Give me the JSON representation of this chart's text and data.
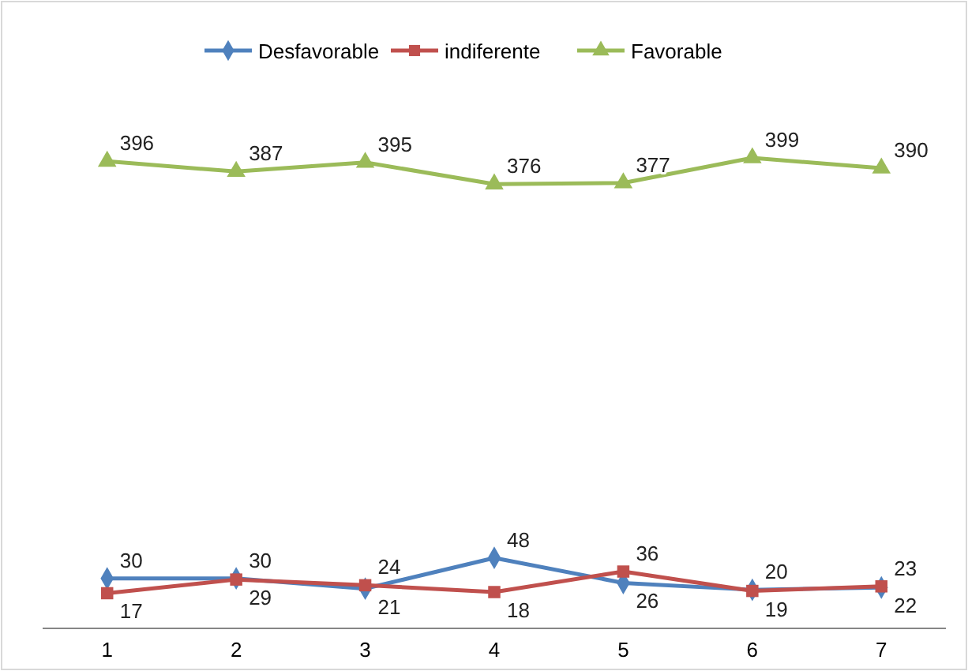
{
  "chart_data": {
    "type": "line",
    "categories": [
      "1",
      "2",
      "3",
      "4",
      "5",
      "6",
      "7"
    ],
    "series": [
      {
        "name": "Desfavorable",
        "color": "#4f81bd",
        "marker": "diamond",
        "values": [
          30,
          30,
          21,
          48,
          26,
          20,
          22
        ]
      },
      {
        "name": "indiferente",
        "color": "#c0504d",
        "marker": "square",
        "values": [
          17,
          29,
          24,
          18,
          36,
          19,
          23
        ]
      },
      {
        "name": "Favorable",
        "color": "#9bbb59",
        "marker": "triangle",
        "values": [
          396,
          387,
          395,
          376,
          377,
          399,
          390
        ]
      }
    ],
    "data_labels": true,
    "legend": "top",
    "grid": false
  }
}
